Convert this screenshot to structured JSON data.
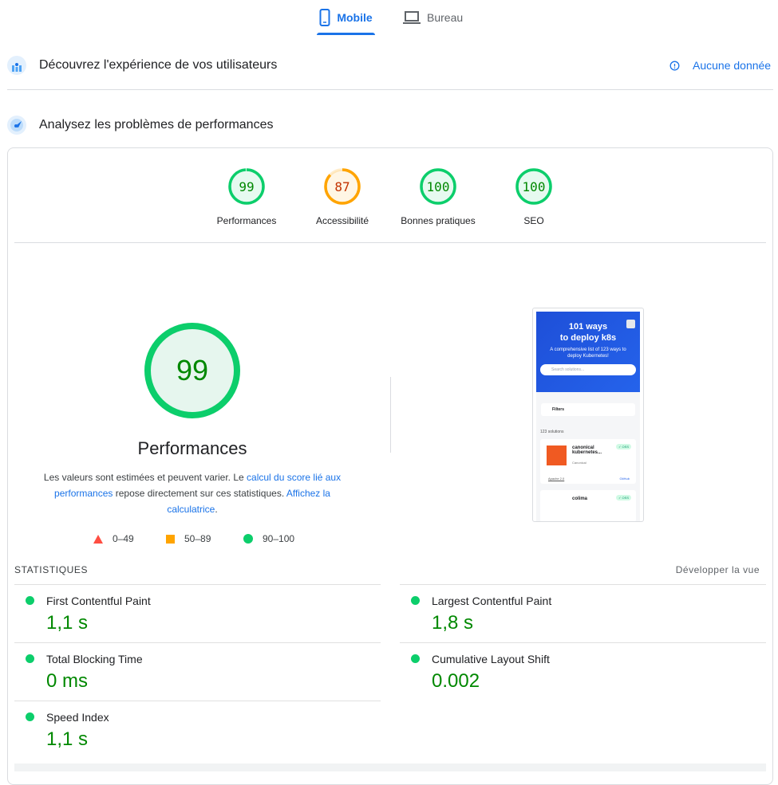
{
  "tabs": [
    {
      "label": "Mobile",
      "icon": "smartphone-icon",
      "active": true
    },
    {
      "label": "Bureau",
      "icon": "laptop-icon",
      "active": false
    }
  ],
  "field_section": {
    "title": "Découvrez l'expérience de vos utilisateurs",
    "no_data": "Aucune donnée"
  },
  "lab_section": {
    "title": "Analysez les problèmes de performances"
  },
  "gauges": [
    {
      "label": "Performances",
      "score": "99",
      "color": "#0cce6b",
      "text_color": "#008800"
    },
    {
      "label": "Accessibilité",
      "score": "87",
      "color": "#ffa400",
      "text_color": "#c33300"
    },
    {
      "label": "Bonnes pratiques",
      "score": "100",
      "color": "#0cce6b",
      "text_color": "#008800"
    },
    {
      "label": "SEO",
      "score": "100",
      "color": "#0cce6b",
      "text_color": "#008800"
    }
  ],
  "main_gauge": {
    "score": "99",
    "label": "Performances"
  },
  "description": {
    "t1": "Les valeurs sont estimées et peuvent varier. Le ",
    "l1": "calcul du score lié aux performances",
    "t2": " repose directement sur ces statistiques. ",
    "l2": "Affichez la calculatrice",
    "t3": "."
  },
  "legend": [
    {
      "range": "0–49",
      "color": "#ff4e42"
    },
    {
      "range": "50–89",
      "color": "#ffa400"
    },
    {
      "range": "90–100",
      "color": "#0cce6b"
    }
  ],
  "screenshot": {
    "title1": "101 ways",
    "title2": "to deploy k8s",
    "subtitle": "A comprehensive list of 123 ways to deploy Kubernetes!",
    "search_placeholder": "Search solutions...",
    "filters": "Filters",
    "count": "123 solutions",
    "item1": {
      "name": "canonical kubernetes...",
      "vendor": "Canonical",
      "badge": "✓ OSS",
      "license": "Apache 2.0",
      "link": "GitHub"
    },
    "item2": {
      "name": "colima",
      "badge": "✓ OSS"
    }
  },
  "stats": {
    "header": "STATISTIQUES",
    "expand": "Développer la vue",
    "metrics": [
      {
        "name": "First Contentful Paint",
        "value": "1,1 s"
      },
      {
        "name": "Largest Contentful Paint",
        "value": "1,8 s"
      },
      {
        "name": "Total Blocking Time",
        "value": "0 ms"
      },
      {
        "name": "Cumulative Layout Shift",
        "value": "0.002"
      },
      {
        "name": "Speed Index",
        "value": "1,1 s"
      }
    ]
  }
}
